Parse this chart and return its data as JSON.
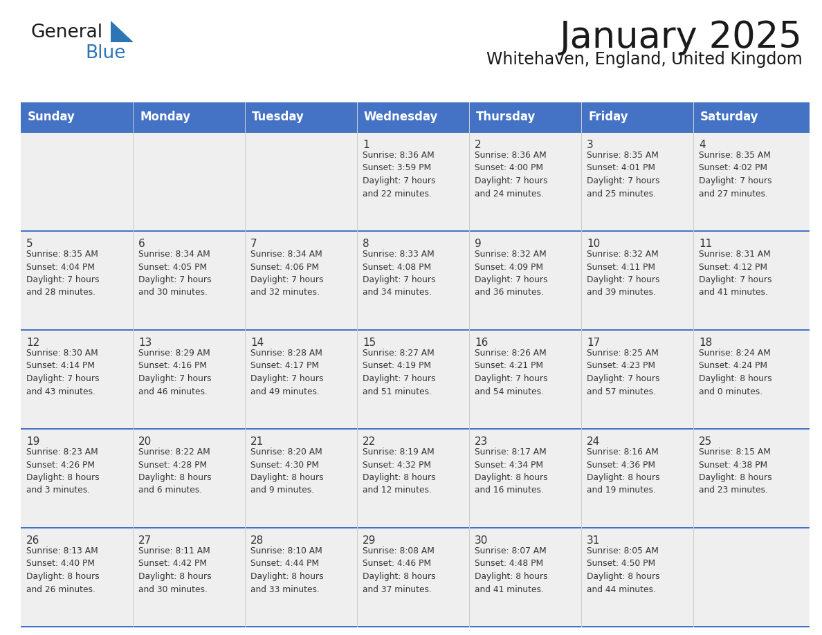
{
  "title": "January 2025",
  "subtitle": "Whitehaven, England, United Kingdom",
  "header_color": "#4472C4",
  "header_text_color": "#FFFFFF",
  "days_of_week": [
    "Sunday",
    "Monday",
    "Tuesday",
    "Wednesday",
    "Thursday",
    "Friday",
    "Saturday"
  ],
  "title_color": "#1a1a1a",
  "subtitle_color": "#1a1a1a",
  "cell_bg": "#EFEFEF",
  "divider_color": "#4472C4",
  "text_color": "#333333",
  "logo_general_color": "#1a1a1a",
  "logo_blue_color": "#2E75B6",
  "calendar_data": [
    [
      {
        "day": null,
        "info": null
      },
      {
        "day": null,
        "info": null
      },
      {
        "day": null,
        "info": null
      },
      {
        "day": 1,
        "info": "Sunrise: 8:36 AM\nSunset: 3:59 PM\nDaylight: 7 hours\nand 22 minutes."
      },
      {
        "day": 2,
        "info": "Sunrise: 8:36 AM\nSunset: 4:00 PM\nDaylight: 7 hours\nand 24 minutes."
      },
      {
        "day": 3,
        "info": "Sunrise: 8:35 AM\nSunset: 4:01 PM\nDaylight: 7 hours\nand 25 minutes."
      },
      {
        "day": 4,
        "info": "Sunrise: 8:35 AM\nSunset: 4:02 PM\nDaylight: 7 hours\nand 27 minutes."
      }
    ],
    [
      {
        "day": 5,
        "info": "Sunrise: 8:35 AM\nSunset: 4:04 PM\nDaylight: 7 hours\nand 28 minutes."
      },
      {
        "day": 6,
        "info": "Sunrise: 8:34 AM\nSunset: 4:05 PM\nDaylight: 7 hours\nand 30 minutes."
      },
      {
        "day": 7,
        "info": "Sunrise: 8:34 AM\nSunset: 4:06 PM\nDaylight: 7 hours\nand 32 minutes."
      },
      {
        "day": 8,
        "info": "Sunrise: 8:33 AM\nSunset: 4:08 PM\nDaylight: 7 hours\nand 34 minutes."
      },
      {
        "day": 9,
        "info": "Sunrise: 8:32 AM\nSunset: 4:09 PM\nDaylight: 7 hours\nand 36 minutes."
      },
      {
        "day": 10,
        "info": "Sunrise: 8:32 AM\nSunset: 4:11 PM\nDaylight: 7 hours\nand 39 minutes."
      },
      {
        "day": 11,
        "info": "Sunrise: 8:31 AM\nSunset: 4:12 PM\nDaylight: 7 hours\nand 41 minutes."
      }
    ],
    [
      {
        "day": 12,
        "info": "Sunrise: 8:30 AM\nSunset: 4:14 PM\nDaylight: 7 hours\nand 43 minutes."
      },
      {
        "day": 13,
        "info": "Sunrise: 8:29 AM\nSunset: 4:16 PM\nDaylight: 7 hours\nand 46 minutes."
      },
      {
        "day": 14,
        "info": "Sunrise: 8:28 AM\nSunset: 4:17 PM\nDaylight: 7 hours\nand 49 minutes."
      },
      {
        "day": 15,
        "info": "Sunrise: 8:27 AM\nSunset: 4:19 PM\nDaylight: 7 hours\nand 51 minutes."
      },
      {
        "day": 16,
        "info": "Sunrise: 8:26 AM\nSunset: 4:21 PM\nDaylight: 7 hours\nand 54 minutes."
      },
      {
        "day": 17,
        "info": "Sunrise: 8:25 AM\nSunset: 4:23 PM\nDaylight: 7 hours\nand 57 minutes."
      },
      {
        "day": 18,
        "info": "Sunrise: 8:24 AM\nSunset: 4:24 PM\nDaylight: 8 hours\nand 0 minutes."
      }
    ],
    [
      {
        "day": 19,
        "info": "Sunrise: 8:23 AM\nSunset: 4:26 PM\nDaylight: 8 hours\nand 3 minutes."
      },
      {
        "day": 20,
        "info": "Sunrise: 8:22 AM\nSunset: 4:28 PM\nDaylight: 8 hours\nand 6 minutes."
      },
      {
        "day": 21,
        "info": "Sunrise: 8:20 AM\nSunset: 4:30 PM\nDaylight: 8 hours\nand 9 minutes."
      },
      {
        "day": 22,
        "info": "Sunrise: 8:19 AM\nSunset: 4:32 PM\nDaylight: 8 hours\nand 12 minutes."
      },
      {
        "day": 23,
        "info": "Sunrise: 8:17 AM\nSunset: 4:34 PM\nDaylight: 8 hours\nand 16 minutes."
      },
      {
        "day": 24,
        "info": "Sunrise: 8:16 AM\nSunset: 4:36 PM\nDaylight: 8 hours\nand 19 minutes."
      },
      {
        "day": 25,
        "info": "Sunrise: 8:15 AM\nSunset: 4:38 PM\nDaylight: 8 hours\nand 23 minutes."
      }
    ],
    [
      {
        "day": 26,
        "info": "Sunrise: 8:13 AM\nSunset: 4:40 PM\nDaylight: 8 hours\nand 26 minutes."
      },
      {
        "day": 27,
        "info": "Sunrise: 8:11 AM\nSunset: 4:42 PM\nDaylight: 8 hours\nand 30 minutes."
      },
      {
        "day": 28,
        "info": "Sunrise: 8:10 AM\nSunset: 4:44 PM\nDaylight: 8 hours\nand 33 minutes."
      },
      {
        "day": 29,
        "info": "Sunrise: 8:08 AM\nSunset: 4:46 PM\nDaylight: 8 hours\nand 37 minutes."
      },
      {
        "day": 30,
        "info": "Sunrise: 8:07 AM\nSunset: 4:48 PM\nDaylight: 8 hours\nand 41 minutes."
      },
      {
        "day": 31,
        "info": "Sunrise: 8:05 AM\nSunset: 4:50 PM\nDaylight: 8 hours\nand 44 minutes."
      },
      {
        "day": null,
        "info": null
      }
    ]
  ]
}
